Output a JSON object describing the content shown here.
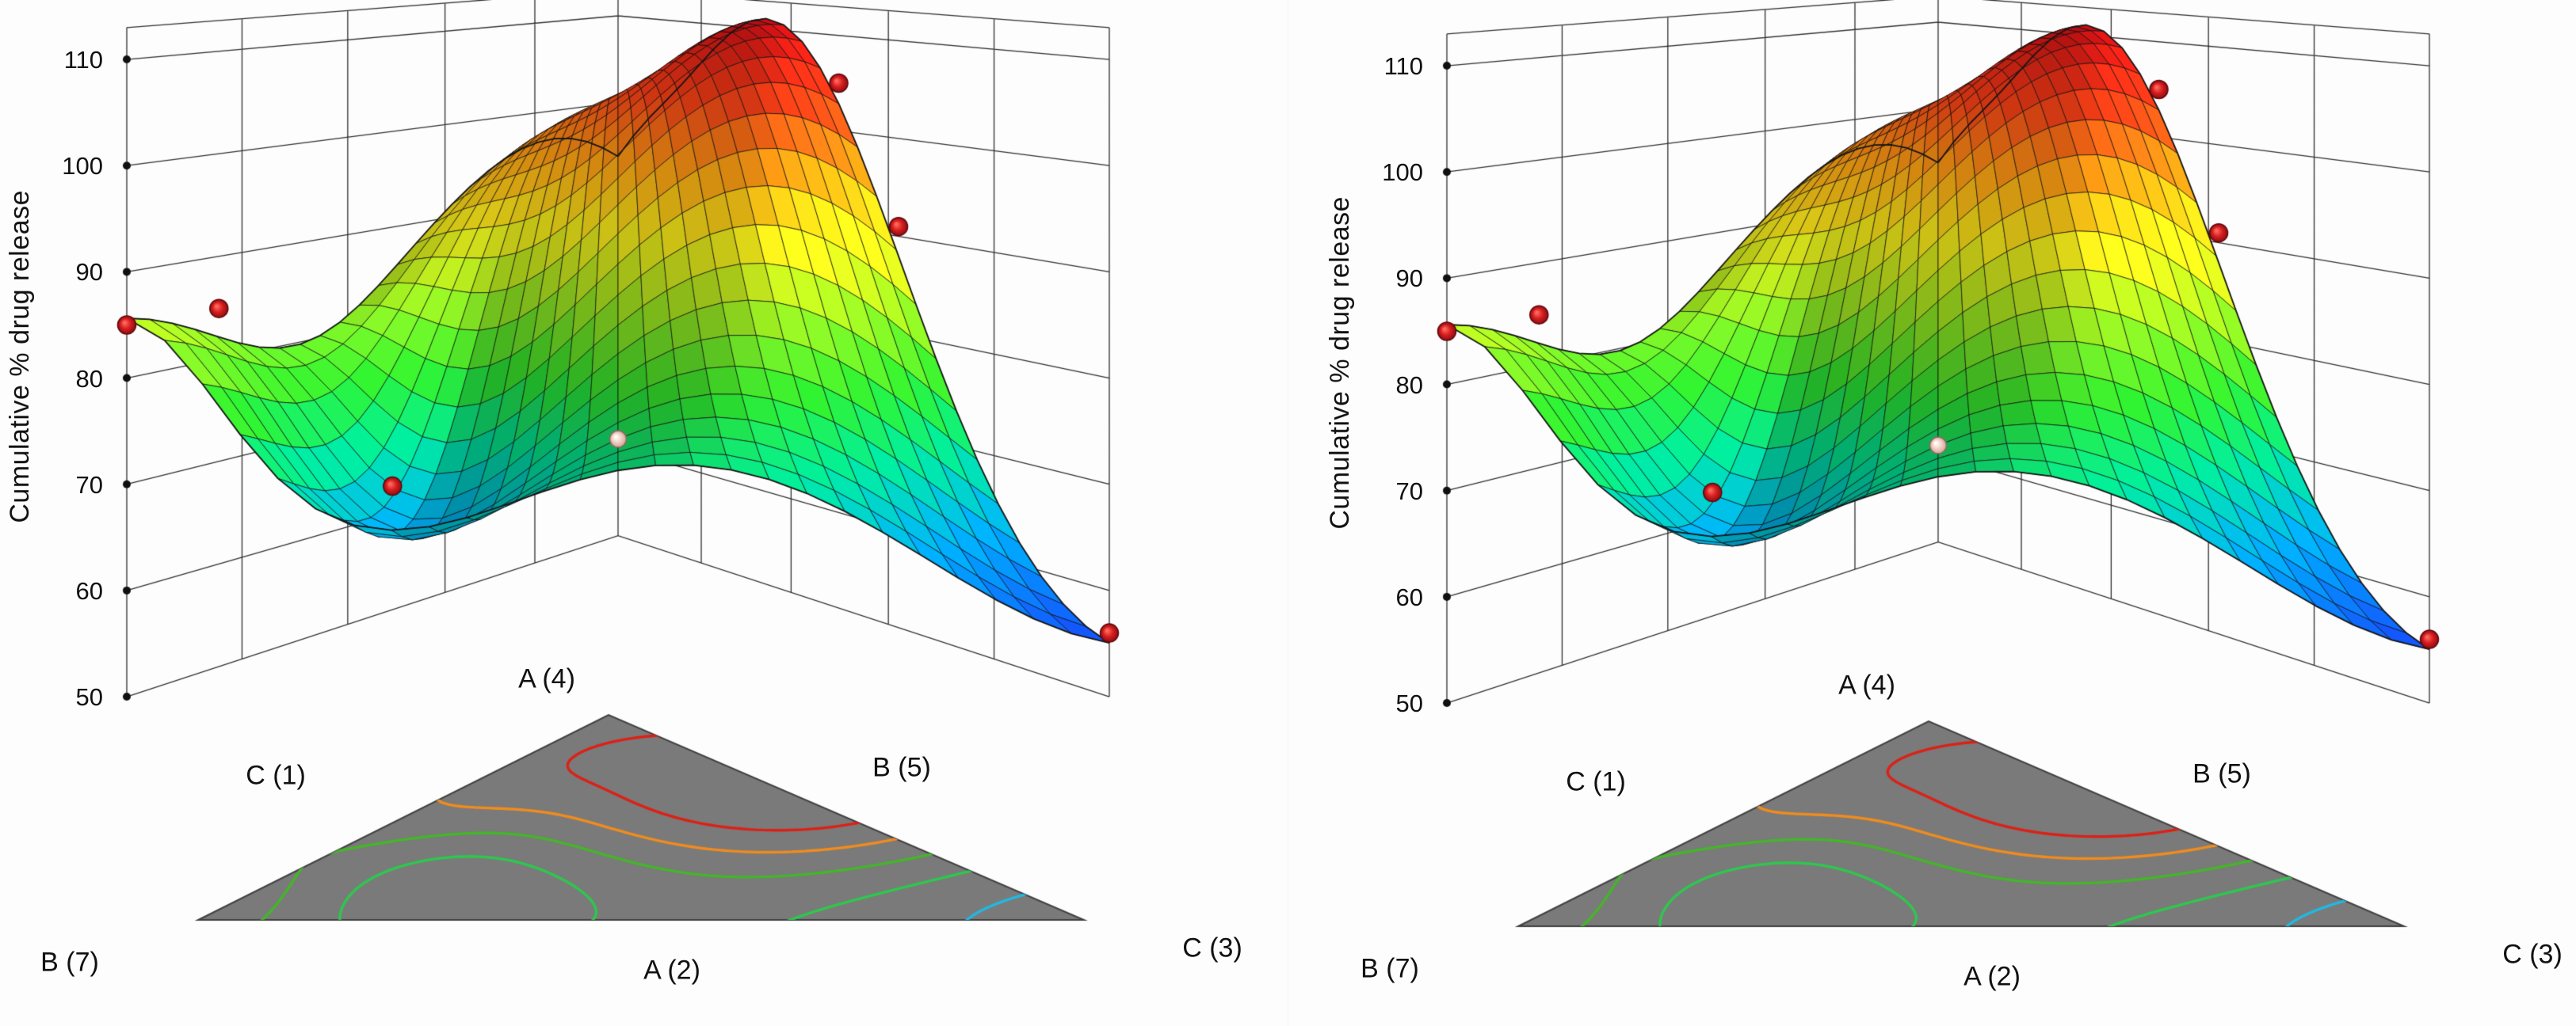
{
  "page": {
    "background": "#f6f6f6"
  },
  "chart_data": {
    "type": "3d-mixture-response-surface",
    "panel_count": 2,
    "response_label": "Cumulative % drug release",
    "z_axis": {
      "min": 50,
      "max": 110,
      "ticks": [
        110,
        100,
        90,
        80,
        70,
        60,
        50
      ]
    },
    "corner_labels": [
      {
        "id": "apex",
        "text": "A (4)"
      },
      {
        "id": "right-edge",
        "text": "B (5)"
      },
      {
        "id": "left-edge",
        "text": "C (1)"
      },
      {
        "id": "bottom-left",
        "text": "B (7)"
      },
      {
        "id": "bottom-center",
        "text": "A (2)"
      },
      {
        "id": "bottom-right",
        "text": "C (3)"
      }
    ],
    "components": [
      {
        "axis": "A",
        "low": 2,
        "high": 4
      },
      {
        "axis": "B",
        "low": 5,
        "high": 7
      },
      {
        "axis": "C",
        "low": 1,
        "high": 3
      }
    ],
    "design_points": [
      {
        "x": -1.0,
        "d": 0.0,
        "z": 85,
        "kind": "design"
      },
      {
        "x": -0.84,
        "d": 0.15,
        "z": 85,
        "kind": "design"
      },
      {
        "x": -0.48,
        "d": 0.2,
        "z": 67,
        "kind": "design"
      },
      {
        "x": 0.5,
        "d": 0.5,
        "z": 105,
        "kind": "design"
      },
      {
        "x": 0.62,
        "d": 0.38,
        "z": 91,
        "kind": "design"
      },
      {
        "x": 1.0,
        "d": 0.0,
        "z": 56,
        "kind": "design"
      },
      {
        "x": 0.0,
        "d": 0.02,
        "z": 74,
        "kind": "center"
      }
    ],
    "surface_model": {
      "base": 73,
      "bumps": [
        {
          "amp": 35,
          "cx": 0.4,
          "cd": 0.62,
          "sx": 0.42,
          "sd": 0.27
        },
        {
          "amp": -13,
          "cx": -0.48,
          "cd": 0.2,
          "sx": 0.3,
          "sd": 0.2
        },
        {
          "amp": -19,
          "cx": 1.05,
          "cd": 0.0,
          "sx": 0.45,
          "sd": 0.35
        },
        {
          "amp": 9,
          "cx": 0.0,
          "cd": 1.0,
          "sx": 0.6,
          "sd": 0.35
        }
      ],
      "edge_ridge": {
        "amp": 15,
        "s_cross": 0.13,
        "cd": 0.15,
        "sd": 0.5
      }
    },
    "contours": {
      "levels": [
        60,
        70,
        80,
        90,
        100
      ],
      "colors": {
        "60": "#22b8e0",
        "70": "#2fc74e",
        "80": "#45b52b",
        "90": "#f08c1e",
        "100": "#dd2016"
      }
    },
    "colormap": [
      [
        54,
        "#1636d8"
      ],
      [
        62,
        "#0090f0"
      ],
      [
        70,
        "#00cf8a"
      ],
      [
        76,
        "#2ad32a"
      ],
      [
        84,
        "#9fdc1e"
      ],
      [
        90,
        "#f2e619"
      ],
      [
        96,
        "#fca313"
      ],
      [
        103,
        "#f54016"
      ],
      [
        111,
        "#cf0d14"
      ]
    ],
    "floor_fill": "#7a7a7a",
    "point_colors": {
      "design": "#d81f20",
      "center": "#f3d7c8"
    },
    "panels": [
      {
        "id": "left",
        "ox": 0,
        "oy": 0
      },
      {
        "id": "right",
        "ox": 40,
        "oy": 8
      }
    ]
  }
}
